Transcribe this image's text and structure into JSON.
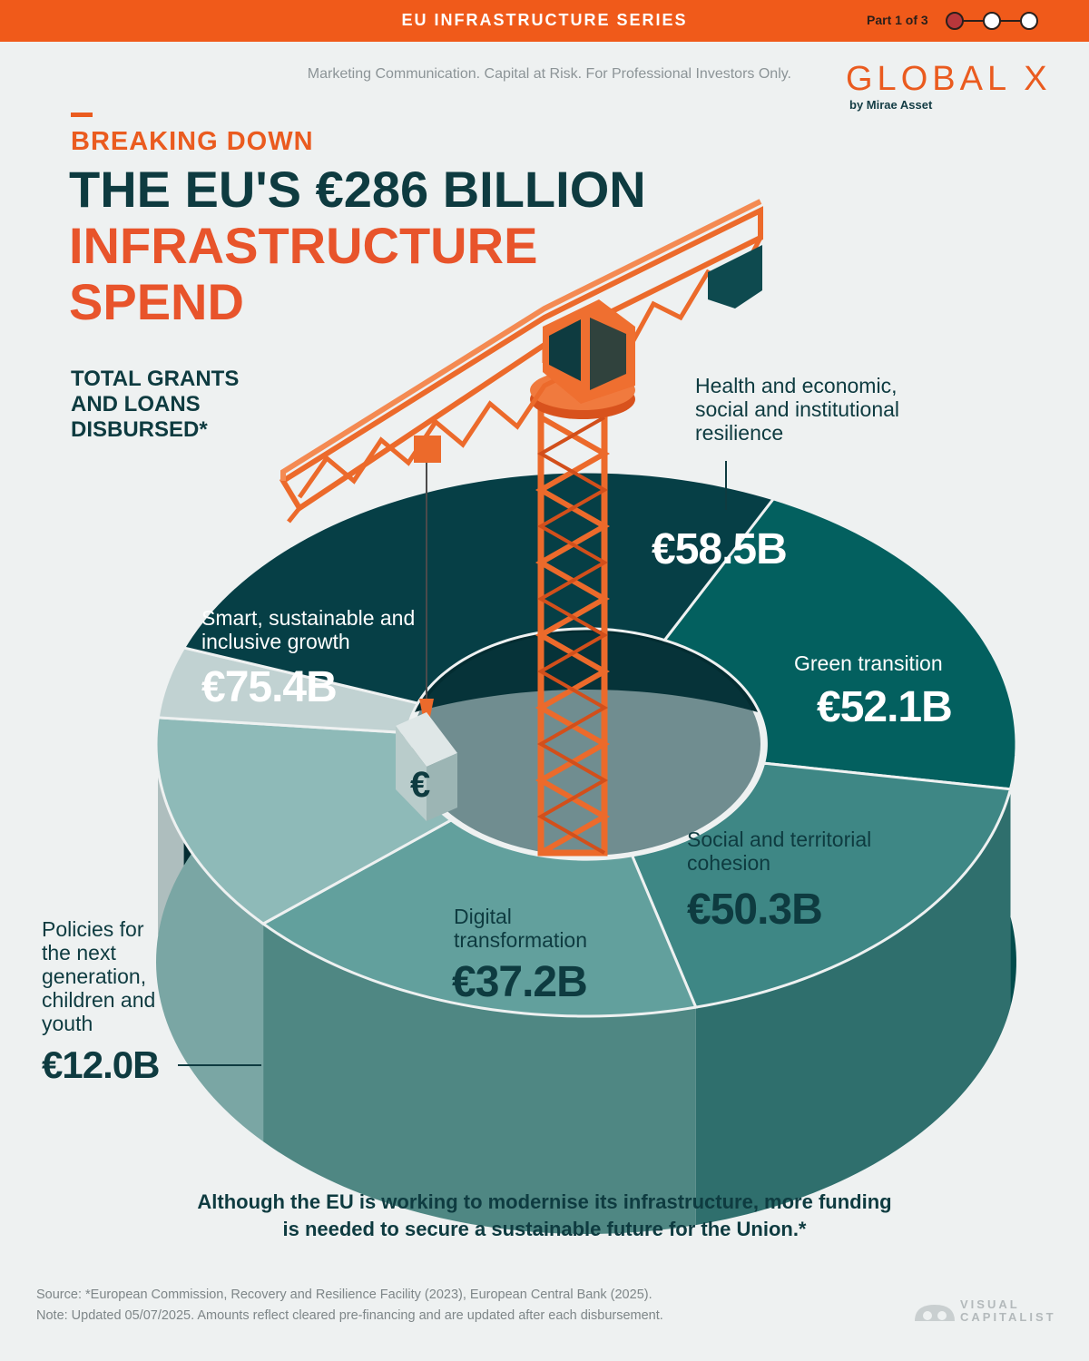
{
  "header": {
    "series_title": "EU INFRASTRUCTURE SERIES",
    "part_label": "Part 1 of 3"
  },
  "disclaimer": "Marketing Communication. Capital at Risk. For Professional Investors Only.",
  "brand": {
    "logo": "GLOBAL X",
    "sub": "by Mirae Asset",
    "accent": "#ea5b1f"
  },
  "title": {
    "eyebrow": "BREAKING DOWN",
    "line1": "THE EU'S €286 BILLION",
    "line2": "INFRASTRUCTURE",
    "line3": "SPEND"
  },
  "total_label": "TOTAL GRANTS AND LOANS DISBURSED*",
  "chart_data": {
    "type": "pie",
    "title": "THE EU'S €286 BILLION INFRASTRUCTURE SPEND",
    "unit": "€B",
    "categories": [
      "Health and economic, social and institutional resilience",
      "Green transition",
      "Social and territorial cohesion",
      "Digital transformation",
      "Policies for the next generation, children and youth",
      "Smart, sustainable and inclusive growth"
    ],
    "values": [
      58.5,
      52.1,
      50.3,
      37.2,
      12.0,
      75.4
    ],
    "value_labels": [
      "€58.5B",
      "€52.1B",
      "€50.3B",
      "€37.2B",
      "€12.0B",
      "€75.4B"
    ],
    "colors": [
      "#03605f",
      "#3e8785",
      "#62a09d",
      "#8ebab8",
      "#c1d2d2",
      "#063f46"
    ],
    "side_colors": [
      "#024c4c",
      "#2f6f6d",
      "#4f8783",
      "#7aa6a4",
      "#aebebe",
      "#032c31"
    ]
  },
  "conclusion": {
    "line1": "Although the EU is working to modernise its infrastructure, more funding",
    "line2": "is needed to secure a sustainable future for the Union.*"
  },
  "footer": {
    "source": "Source: *European Commission, Recovery and Resilience Facility (2023), European Central Bank (2025).",
    "note": "Note: Updated 05/07/2025. Amounts reflect cleared pre-financing and are updated after each disbursement.",
    "vc_logo": "VISUAL CAPITALIST"
  },
  "icons": {
    "crane": "construction-crane-icon",
    "euro_block": "euro-block-icon",
    "vc": "visual-capitalist-logo"
  }
}
